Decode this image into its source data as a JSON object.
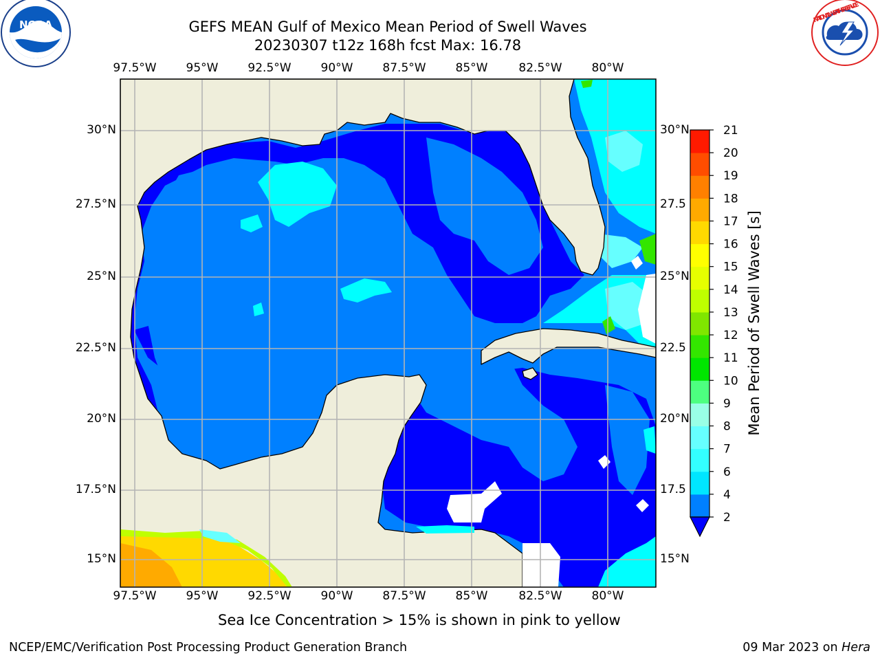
{
  "header": {
    "title_line1": "GEFS MEAN Gulf of Mexico Mean Period of Swell Waves",
    "title_line2": "20230307 t12z 168h fcst   Max: 16.78"
  },
  "logos": {
    "left": {
      "text": "NOAA",
      "ring": "NATIONAL OCEANIC AND ATMOSPHERIC ADMINISTRATION · U.S. DEPARTMENT OF COMMERCE"
    },
    "right": {
      "ring": "NATIONAL WEATHER SERVICE"
    }
  },
  "axes": {
    "lon_ticks": [
      "97.5°W",
      "95°W",
      "92.5°W",
      "90°W",
      "87.5°W",
      "85°W",
      "82.5°W",
      "80°W"
    ],
    "lat_ticks": [
      "30°N",
      "27.5°N",
      "25°N",
      "22.5°N",
      "20°N",
      "17.5°N",
      "15°N"
    ],
    "lat_ticks_right": [
      "30°N",
      "27.5",
      "25°N",
      "22.5",
      "20°N",
      "17.5",
      "15°N"
    ]
  },
  "colorbar": {
    "label": "Mean Period of Swell Waves [s]",
    "levels": [
      "2",
      "4",
      "6",
      "7",
      "8",
      "9",
      "10",
      "11",
      "12",
      "13",
      "14",
      "15",
      "16",
      "17",
      "18",
      "19",
      "20",
      "21"
    ],
    "colors": [
      "#0080ff",
      "#00e6ff",
      "#33ffff",
      "#66ffff",
      "#99ffe6",
      "#4dff80",
      "#00e600",
      "#33e600",
      "#80e600",
      "#bfff00",
      "#e6ff00",
      "#ffff00",
      "#ffd900",
      "#ffaa00",
      "#ff8000",
      "#ff4d00",
      "#ff1a00"
    ],
    "under_color": "#0000ff"
  },
  "colors": {
    "land": "#efeedb",
    "ocean_deep": "#0000ff",
    "ocean_mid": "#0080ff",
    "ocean_light": "#00ffff",
    "grid": "#b4b4b4"
  },
  "caption": "Sea Ice Concentration > 15% is shown in pink to yellow",
  "footer": {
    "left": "NCEP/EMC/Verification Post Processing Product Generation Branch",
    "right_date": "09 Mar 2023 on ",
    "right_host": "Hera"
  }
}
